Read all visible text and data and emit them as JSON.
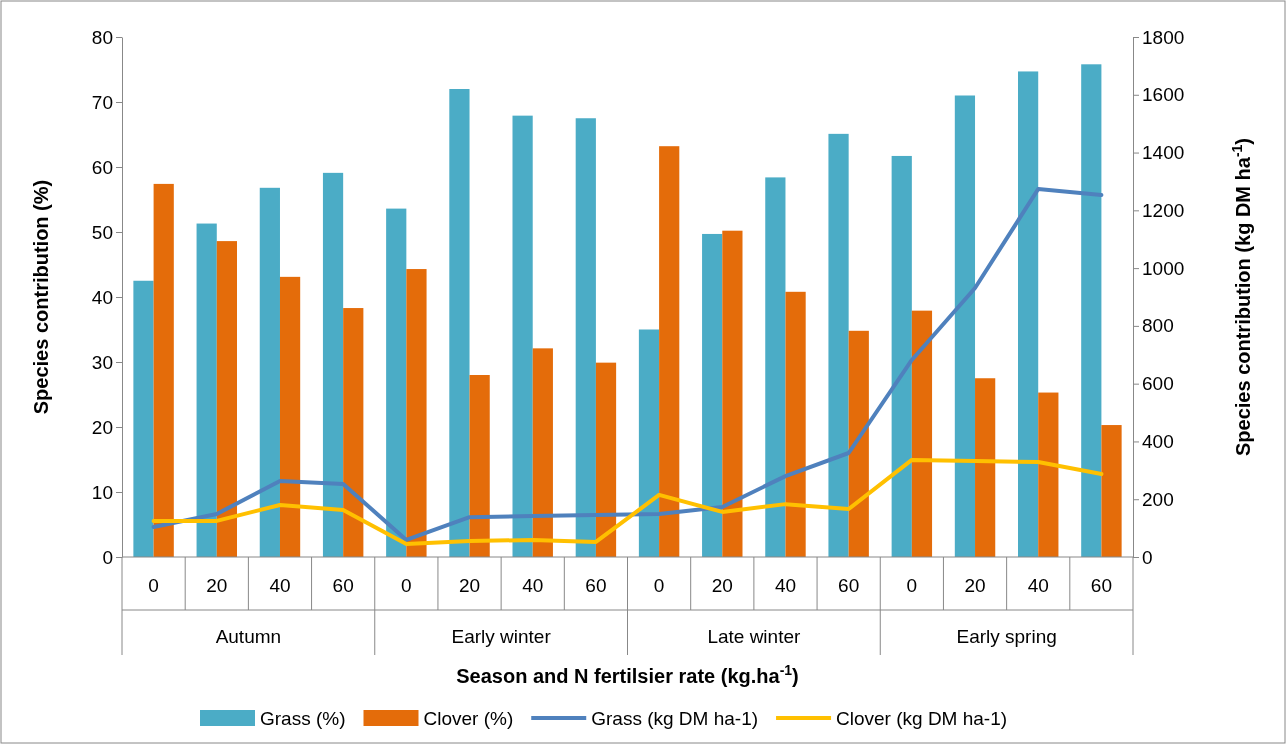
{
  "chart_data": {
    "type": "bar",
    "xlabel": "Season and N fertilsier rate (kg.ha$^{-1}$)",
    "ylabel": "Species contribution (%)",
    "y2label": "Species contribution (kg DM ha$^{-1}$)",
    "categories": [
      "0",
      "20",
      "40",
      "60",
      "0",
      "20",
      "40",
      "60",
      "0",
      "20",
      "40",
      "60",
      "0",
      "20",
      "40",
      "60"
    ],
    "annotations": [
      "Autumn",
      "Early winter",
      "Late winter",
      "Early spring"
    ],
    "ylim": [
      0,
      80
    ],
    "yticks": [
      0,
      10,
      20,
      30,
      40,
      50,
      60,
      70,
      80
    ],
    "y2lim": [
      0,
      1800
    ],
    "y2ticks": [
      0,
      200,
      400,
      600,
      800,
      1000,
      1200,
      1400,
      1600,
      1800
    ],
    "grid": false,
    "legend": "bottom",
    "series": [
      {
        "name": "Grass (%)",
        "color": "#4bacc6",
        "values": [
          42.5,
          51.3,
          56.8,
          59.1,
          53.6,
          72.0,
          67.9,
          67.5,
          35.0,
          49.7,
          58.4,
          65.1,
          61.7,
          71.0,
          74.7,
          75.8
        ]
      },
      {
        "name": "Clover (%)",
        "color": "#e46c0a",
        "values": [
          57.4,
          48.6,
          43.1,
          38.3,
          44.3,
          28.0,
          32.1,
          29.9,
          63.2,
          50.2,
          40.8,
          34.8,
          37.9,
          27.5,
          25.3,
          20.3
        ]
      },
      {
        "name": "Grass (kg DM ha-1)",
        "type": "line",
        "axis": "y2",
        "color": "#4f81bd",
        "values": [
          104,
          149,
          263,
          253,
          59,
          138,
          142,
          145,
          149,
          173,
          280,
          360,
          682,
          931,
          1274,
          1253
        ]
      },
      {
        "name": "Clover (kg DM ha-1)",
        "type": "line",
        "axis": "y2",
        "color": "#ffc000",
        "values": [
          125,
          125,
          180,
          163,
          45,
          55,
          59,
          52,
          215,
          156,
          183,
          166,
          336,
          332,
          329,
          287
        ]
      }
    ]
  }
}
